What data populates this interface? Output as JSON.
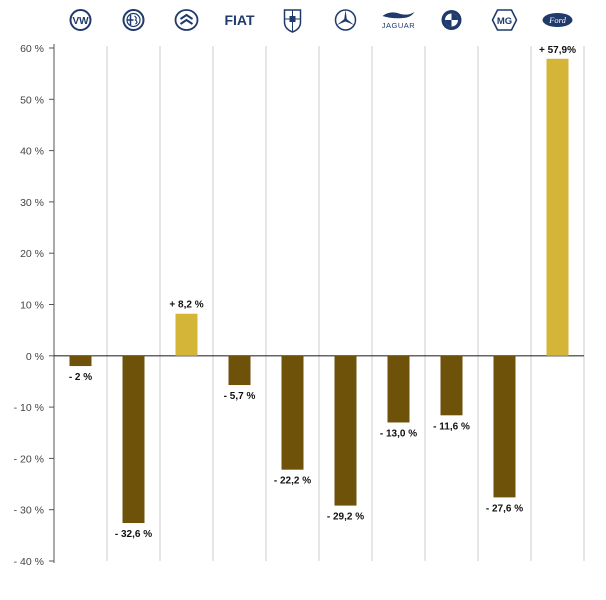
{
  "chart_data": {
    "type": "bar",
    "title": "",
    "xlabel": "",
    "ylabel": "",
    "categories": [
      "Volkswagen",
      "Alfa Romeo",
      "Citroën",
      "Fiat",
      "Porsche",
      "Mercedes-Benz",
      "Jaguar",
      "BMW",
      "MG",
      "Ford"
    ],
    "logo_texts": [
      "VW",
      "",
      "",
      "FIAT",
      "",
      "",
      "JAGUAR",
      "",
      "MG",
      "Ford"
    ],
    "values": [
      -2,
      -32.6,
      8.2,
      -5.7,
      -22.2,
      -29.2,
      -13.0,
      -11.6,
      -27.6,
      57.9
    ],
    "value_labels": [
      "- 2 %",
      "- 32,6 %",
      "+ 8,2 %",
      "- 5,7 %",
      "- 22,2 %",
      "- 29,2 %",
      "- 13,0 %",
      "- 11,6 %",
      "- 27,6 %",
      "+ 57,9%"
    ],
    "ylim": [
      -40,
      60
    ],
    "yticks": [
      60,
      50,
      40,
      30,
      20,
      10,
      0,
      -10,
      -20,
      -30,
      -40
    ],
    "ytick_labels": [
      "60 %",
      "50 %",
      "40 %",
      "30 %",
      "20 %",
      "10 %",
      "0 %",
      "- 10 %",
      "- 20 %",
      "- 30 %",
      "- 40 %"
    ],
    "grid": "vertical separators between categories",
    "colors": {
      "positive": "#d4b537",
      "negative": "#6e5209",
      "axis": "#555555",
      "grid": "#cccccc",
      "logo": "#1f3a6b"
    }
  }
}
